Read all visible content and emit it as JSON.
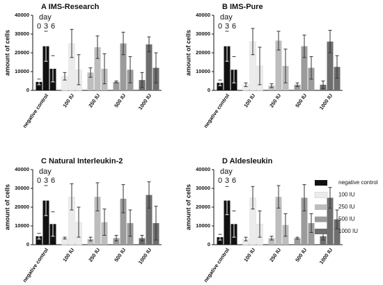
{
  "chart_data": [
    {
      "type": "bar",
      "title": "A IMS-Research",
      "ylabel": "amount of cells",
      "annotation": "day",
      "categories": [
        "negative control",
        "100 IU",
        "250 IU",
        "500 IU",
        "1000 IU"
      ],
      "colors": [
        "#111111",
        "#ebebeb",
        "#bdbdbd",
        "#9b9b9b",
        "#6e6e6e"
      ],
      "series": [
        {
          "name": "0",
          "values": [
            4500,
            7500,
            9500,
            4500,
            5500
          ],
          "errors": [
            1500,
            2000,
            2500,
            500,
            4000
          ]
        },
        {
          "name": "3",
          "values": [
            23500,
            25000,
            23000,
            25000,
            24500
          ],
          "errors": [
            8000,
            7500,
            6000,
            6000,
            4000
          ]
        },
        {
          "name": "6",
          "values": [
            11500,
            11000,
            11500,
            11000,
            12000
          ],
          "errors": [
            7000,
            8000,
            8000,
            7000,
            8000
          ]
        }
      ],
      "ylim": [
        0,
        40000
      ],
      "yticks": [
        0,
        10000,
        20000,
        30000,
        40000
      ]
    },
    {
      "type": "bar",
      "title": "B IMS-Pure",
      "ylabel": "amount of cells",
      "annotation": "day",
      "categories": [
        "negative control",
        "100 IU",
        "250 IU",
        "500 IU",
        "1000 IU"
      ],
      "colors": [
        "#111111",
        "#ebebeb",
        "#bdbdbd",
        "#9b9b9b",
        "#6e6e6e"
      ],
      "series": [
        {
          "name": "0",
          "values": [
            4000,
            3000,
            2500,
            3000,
            3000
          ],
          "errors": [
            1500,
            1000,
            1000,
            1000,
            2000
          ]
        },
        {
          "name": "3",
          "values": [
            23500,
            26000,
            26500,
            23500,
            26000
          ],
          "errors": [
            8000,
            7000,
            5000,
            6000,
            6000
          ]
        },
        {
          "name": "6",
          "values": [
            11000,
            13000,
            13000,
            12000,
            12500
          ],
          "errors": [
            7000,
            10000,
            9000,
            6000,
            6000
          ]
        }
      ],
      "ylim": [
        0,
        40000
      ],
      "yticks": [
        0,
        10000,
        20000,
        30000,
        40000
      ]
    },
    {
      "type": "bar",
      "title": "C Natural Interleukin-2",
      "ylabel": "amount of cells",
      "annotation": "day",
      "categories": [
        "negative control",
        "100 IU",
        "250 IU",
        "500 IU",
        "1000 IU"
      ],
      "colors": [
        "#111111",
        "#ebebeb",
        "#bdbdbd",
        "#9b9b9b",
        "#6e6e6e"
      ],
      "series": [
        {
          "name": "0",
          "values": [
            4500,
            3500,
            3000,
            3500,
            3500
          ],
          "errors": [
            1500,
            500,
            1000,
            1500,
            1500
          ]
        },
        {
          "name": "3",
          "values": [
            23500,
            25500,
            25500,
            24500,
            26500
          ],
          "errors": [
            8000,
            7000,
            7500,
            7500,
            7000
          ]
        },
        {
          "name": "6",
          "values": [
            11000,
            12000,
            12000,
            11500,
            11500
          ],
          "errors": [
            6500,
            8000,
            7000,
            7000,
            9000
          ]
        }
      ],
      "ylim": [
        0,
        40000
      ],
      "yticks": [
        0,
        10000,
        20000,
        30000,
        40000
      ]
    },
    {
      "type": "bar",
      "title": "D Aldesleukin",
      "ylabel": "amount of cells",
      "annotation": "day",
      "categories": [
        "negative control",
        "100 IU",
        "250 IU",
        "500 IU",
        "1000 IU"
      ],
      "colors": [
        "#111111",
        "#ebebeb",
        "#bdbdbd",
        "#9b9b9b",
        "#6e6e6e"
      ],
      "series": [
        {
          "name": "0",
          "values": [
            4000,
            3000,
            3500,
            3500,
            4500
          ],
          "errors": [
            1500,
            1000,
            1000,
            500,
            2000
          ]
        },
        {
          "name": "3",
          "values": [
            23500,
            25000,
            25500,
            25000,
            25000
          ],
          "errors": [
            7500,
            6000,
            6000,
            7000,
            5500
          ]
        },
        {
          "name": "6",
          "values": [
            11000,
            11000,
            10500,
            11500,
            13500
          ],
          "errors": [
            7000,
            7000,
            6000,
            5000,
            5000
          ]
        }
      ],
      "ylim": [
        0,
        40000
      ],
      "yticks": [
        0,
        10000,
        20000,
        30000,
        40000
      ]
    }
  ],
  "legend": {
    "entries": [
      {
        "label": "negative control",
        "color": "#111111"
      },
      {
        "label": "100 IU",
        "color": "#ebebeb"
      },
      {
        "label": "250 IU",
        "color": "#bdbdbd"
      },
      {
        "label": "500 IU",
        "color": "#9b9b9b"
      },
      {
        "label": "1000 IU",
        "color": "#6e6e6e"
      }
    ]
  }
}
